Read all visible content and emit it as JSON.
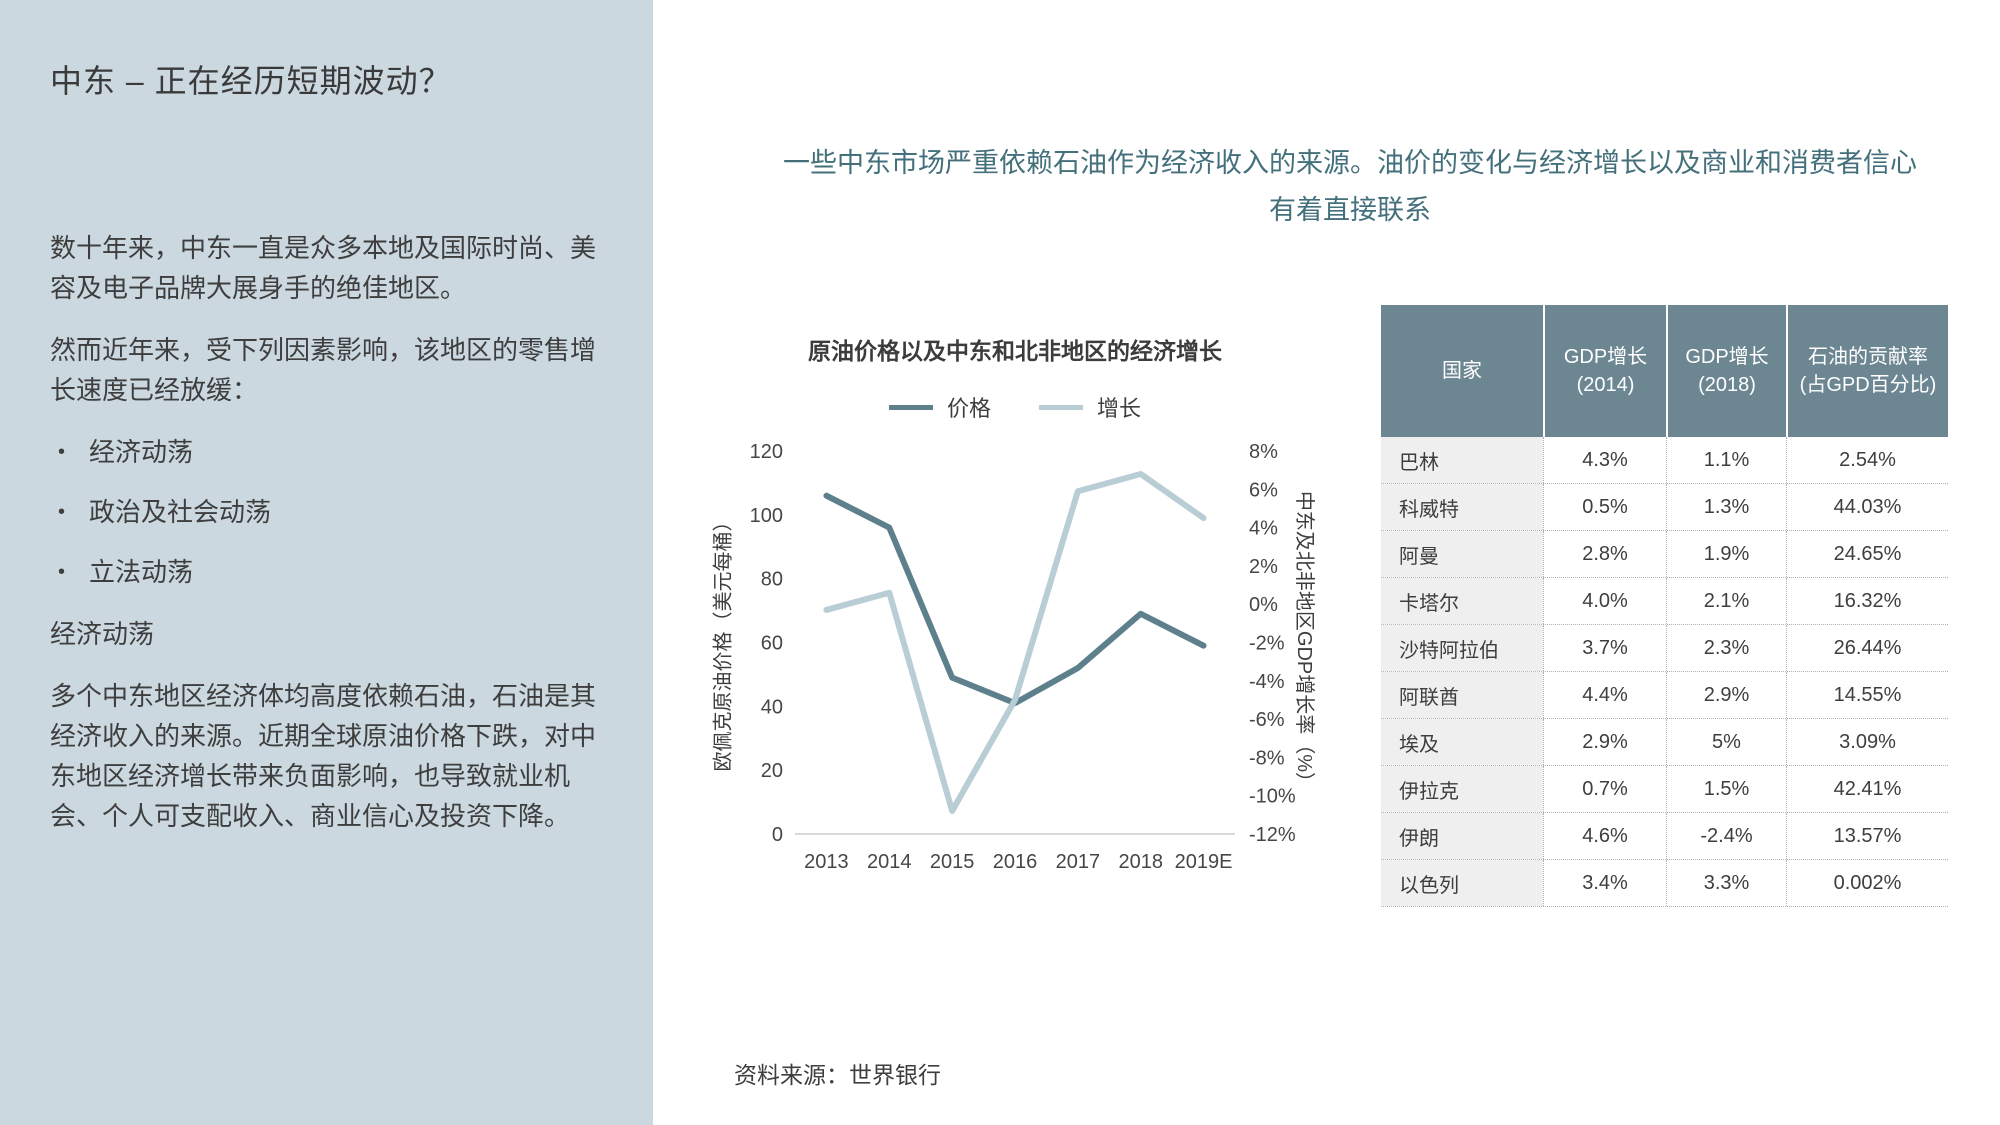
{
  "sidebar": {
    "title": "中东 – 正在经历短期波动？",
    "para1": "数十年来，中东一直是众多本地及国际时尚、美容及电子品牌大展身手的绝佳地区。",
    "para2": "然而近年来，受下列因素影响，该地区的零售增长速度已经放缓：",
    "bullets": [
      "经济动荡",
      "政治及社会动荡",
      "立法动荡"
    ],
    "subheading": "经济动荡",
    "para3": "多个中东地区经济体均高度依赖石油，石油是其经济收入的来源。近期全球原油价格下跌，对中东地区经济增长带来负面影响，也导致就业机会、个人可支配收入、商业信心及投资下降。"
  },
  "main": {
    "statement": "一些中东市场严重依赖石油作为经济收入的来源。油价的变化与经济增长以及商业和消费者信心有着直接联系",
    "source": "资料来源：世界银行"
  },
  "chart_data": {
    "type": "line",
    "title": "原油价格以及中东和北非地区的经济增长",
    "categories": [
      "2013",
      "2014",
      "2015",
      "2016",
      "2017",
      "2018",
      "2019E"
    ],
    "series": [
      {
        "name": "价格",
        "axis": "left",
        "color": "#5d808c",
        "values": [
          106,
          96,
          49,
          41,
          52,
          69,
          59
        ]
      },
      {
        "name": "增长",
        "axis": "right",
        "color": "#b9cdd5",
        "values": [
          -0.3,
          0.6,
          -10.8,
          -5,
          5.9,
          6.8,
          4.5
        ]
      }
    ],
    "left_axis": {
      "label": "欧佩克原油价格（美元每桶）",
      "min": 0,
      "max": 120,
      "step": 20,
      "suffix": ""
    },
    "right_axis": {
      "label": "中东及北非地区GDP增长率（%）",
      "min": -12,
      "max": 8,
      "step": 2,
      "suffix": "%"
    },
    "legend_position": "top",
    "grid": false
  },
  "table": {
    "columns": [
      "国家",
      "GDP增长\n(2014)",
      "GDP增长\n(2018)",
      "石油的贡献率\n(占GPD百分比)"
    ],
    "rows": [
      [
        "巴林",
        "4.3%",
        "1.1%",
        "2.54%"
      ],
      [
        "科威特",
        "0.5%",
        "1.3%",
        "44.03%"
      ],
      [
        "阿曼",
        "2.8%",
        "1.9%",
        "24.65%"
      ],
      [
        "卡塔尔",
        "4.0%",
        "2.1%",
        "16.32%"
      ],
      [
        "沙特阿拉伯",
        "3.7%",
        "2.3%",
        "26.44%"
      ],
      [
        "阿联酋",
        "4.4%",
        "2.9%",
        "14.55%"
      ],
      [
        "埃及",
        "2.9%",
        "5%",
        "3.09%"
      ],
      [
        "伊拉克",
        "0.7%",
        "1.5%",
        "42.41%"
      ],
      [
        "伊朗",
        "4.6%",
        "-2.4%",
        "13.57%"
      ],
      [
        "以色列",
        "3.4%",
        "3.3%",
        "0.002%"
      ]
    ]
  },
  "colors": {
    "sidebar_bg": "#cbd8e0",
    "statement_teal": "#44707c",
    "price_line": "#5d808c",
    "growth_line": "#b9cdd5",
    "table_header_bg": "#6c8692",
    "body_text": "#3e3e3e"
  }
}
